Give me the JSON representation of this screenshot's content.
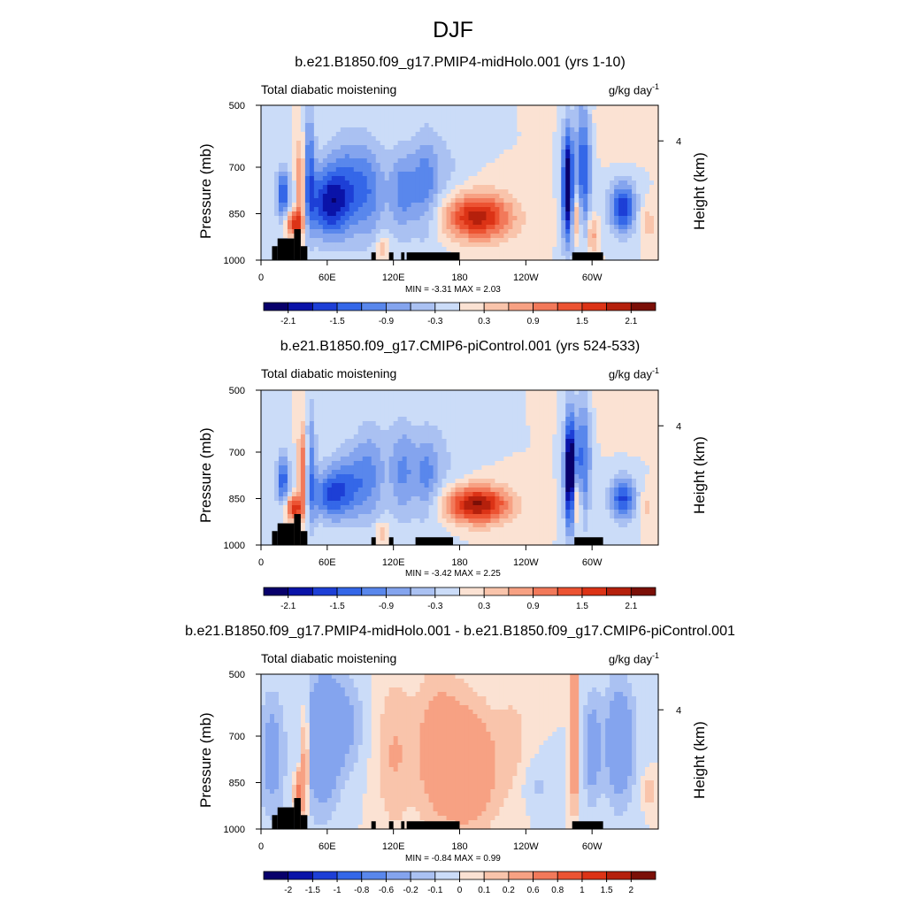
{
  "main_title": "DJF",
  "chart_data": [
    {
      "type": "heatmap",
      "title": "b.e21.B1850.f09_g17.PMIP4-midHolo.001 (yrs 1-10)",
      "left_string": "Total diabatic moistening",
      "right_string_base": "g/kg day",
      "right_string_exp": "-1",
      "ylabel": "Pressure (mb)",
      "ylabel_right": "Height (km)",
      "x_ticks": [
        "0",
        "60E",
        "120E",
        "180",
        "120W",
        "60W"
      ],
      "x_tick_values": [
        0,
        60,
        120,
        180,
        240,
        300
      ],
      "x_range": [
        0,
        360
      ],
      "y_ticks": [
        "500",
        "700",
        "850",
        "1000"
      ],
      "y_tick_values": [
        500,
        700,
        850,
        1000
      ],
      "y_range": [
        500,
        1000
      ],
      "y_right_ticks": [
        "4"
      ],
      "y_right_tick_values": [
        615
      ],
      "min_max": "MIN =  -3.31  MAX =   2.03",
      "contour_levels": [
        -2.4,
        -2.1,
        -1.8,
        -1.5,
        -1.2,
        -0.9,
        -0.6,
        -0.3,
        0,
        0.3,
        0.6,
        0.9,
        1.2,
        1.5,
        1.8,
        2.1,
        2.4
      ],
      "colorbar_labels": [
        "-2.1",
        "-1.5",
        "-0.9",
        "-0.3",
        "0.3",
        "0.9",
        "1.5",
        "2.1"
      ],
      "colorbar_label_index": [
        1,
        3,
        5,
        7,
        9,
        11,
        13,
        15
      ],
      "features": [
        {
          "lon": 20,
          "p": 790,
          "w": 6,
          "h": 90,
          "v": -1.5
        },
        {
          "lon": 30,
          "p": 880,
          "w": 8,
          "h": 40,
          "v": 1.8
        },
        {
          "lon": 36,
          "p": 760,
          "w": 4,
          "h": 140,
          "v": 1.3
        },
        {
          "lon": 44,
          "p": 700,
          "w": 5,
          "h": 200,
          "v": -1.2
        },
        {
          "lon": 60,
          "p": 820,
          "w": 18,
          "h": 110,
          "v": -1.6
        },
        {
          "lon": 78,
          "p": 760,
          "w": 20,
          "h": 160,
          "v": -1.1
        },
        {
          "lon": 100,
          "p": 780,
          "w": 15,
          "h": 160,
          "v": -0.8
        },
        {
          "lon": 128,
          "p": 780,
          "w": 12,
          "h": 140,
          "v": -1.0
        },
        {
          "lon": 148,
          "p": 760,
          "w": 12,
          "h": 160,
          "v": -0.9
        },
        {
          "lon": 165,
          "p": 750,
          "w": 22,
          "h": 200,
          "v": -0.4
        },
        {
          "lon": 110,
          "p": 960,
          "w": 6,
          "h": 40,
          "v": 0.6
        },
        {
          "lon": 195,
          "p": 860,
          "w": 32,
          "h": 75,
          "v": 2.0
        },
        {
          "lon": 278,
          "p": 760,
          "w": 5,
          "h": 180,
          "v": -2.6
        },
        {
          "lon": 292,
          "p": 700,
          "w": 7,
          "h": 220,
          "v": -1.5
        },
        {
          "lon": 286,
          "p": 860,
          "w": 4,
          "h": 80,
          "v": 1.1
        },
        {
          "lon": 300,
          "p": 920,
          "w": 5,
          "h": 60,
          "v": 0.8
        },
        {
          "lon": 328,
          "p": 830,
          "w": 12,
          "h": 80,
          "v": -1.8
        },
        {
          "lon": 350,
          "p": 880,
          "w": 8,
          "h": 60,
          "v": 0.5
        },
        {
          "lon": 330,
          "p": 560,
          "w": 30,
          "h": 90,
          "v": 0.3
        }
      ],
      "terrain": [
        {
          "lon0": 10,
          "lon1": 15,
          "p": 955
        },
        {
          "lon0": 15,
          "lon1": 30,
          "p": 930
        },
        {
          "lon0": 30,
          "lon1": 36,
          "p": 900
        },
        {
          "lon0": 36,
          "lon1": 42,
          "p": 955
        },
        {
          "lon0": 100,
          "lon1": 104,
          "p": 975
        },
        {
          "lon0": 116,
          "lon1": 120,
          "p": 975
        },
        {
          "lon0": 127,
          "lon1": 130,
          "p": 975
        },
        {
          "lon0": 132,
          "lon1": 180,
          "p": 975
        },
        {
          "lon0": 282,
          "lon1": 310,
          "p": 975
        }
      ]
    },
    {
      "type": "heatmap",
      "title": "b.e21.B1850.f09_g17.CMIP6-piControl.001 (yrs 524-533)",
      "left_string": "Total diabatic moistening",
      "right_string_base": "g/kg day",
      "right_string_exp": "-1",
      "ylabel": "Pressure (mb)",
      "ylabel_right": "Height (km)",
      "x_ticks": [
        "0",
        "60E",
        "120E",
        "180",
        "120W",
        "60W"
      ],
      "x_tick_values": [
        0,
        60,
        120,
        180,
        240,
        300
      ],
      "x_range": [
        0,
        360
      ],
      "y_ticks": [
        "500",
        "700",
        "850",
        "1000"
      ],
      "y_tick_values": [
        500,
        700,
        850,
        1000
      ],
      "y_range": [
        500,
        1000
      ],
      "y_right_ticks": [
        "4"
      ],
      "y_right_tick_values": [
        615
      ],
      "min_max": "MIN =  -3.42  MAX =   2.25",
      "contour_levels": [
        -2.4,
        -2.1,
        -1.8,
        -1.5,
        -1.2,
        -0.9,
        -0.6,
        -0.3,
        0,
        0.3,
        0.6,
        0.9,
        1.2,
        1.5,
        1.8,
        2.1,
        2.4
      ],
      "colorbar_labels": [
        "-2.1",
        "-1.5",
        "-0.9",
        "-0.3",
        "0.3",
        "0.9",
        "1.5",
        "2.1"
      ],
      "colorbar_label_index": [
        1,
        3,
        5,
        7,
        9,
        11,
        13,
        15
      ],
      "features": [
        {
          "lon": 20,
          "p": 790,
          "w": 6,
          "h": 90,
          "v": -1.4
        },
        {
          "lon": 30,
          "p": 880,
          "w": 8,
          "h": 40,
          "v": 1.8
        },
        {
          "lon": 38,
          "p": 760,
          "w": 4,
          "h": 140,
          "v": 1.4
        },
        {
          "lon": 45,
          "p": 740,
          "w": 5,
          "h": 200,
          "v": -1.0
        },
        {
          "lon": 62,
          "p": 840,
          "w": 18,
          "h": 80,
          "v": -1.2
        },
        {
          "lon": 80,
          "p": 800,
          "w": 20,
          "h": 120,
          "v": -0.9
        },
        {
          "lon": 100,
          "p": 760,
          "w": 15,
          "h": 170,
          "v": -0.7
        },
        {
          "lon": 128,
          "p": 760,
          "w": 12,
          "h": 160,
          "v": -0.9
        },
        {
          "lon": 150,
          "p": 780,
          "w": 12,
          "h": 140,
          "v": -0.8
        },
        {
          "lon": 165,
          "p": 760,
          "w": 25,
          "h": 200,
          "v": -0.3
        },
        {
          "lon": 110,
          "p": 960,
          "w": 6,
          "h": 40,
          "v": 0.6
        },
        {
          "lon": 195,
          "p": 870,
          "w": 30,
          "h": 60,
          "v": 2.2
        },
        {
          "lon": 280,
          "p": 760,
          "w": 5,
          "h": 180,
          "v": -2.8
        },
        {
          "lon": 292,
          "p": 720,
          "w": 7,
          "h": 200,
          "v": -1.3
        },
        {
          "lon": 286,
          "p": 860,
          "w": 4,
          "h": 80,
          "v": 1.1
        },
        {
          "lon": 328,
          "p": 850,
          "w": 12,
          "h": 70,
          "v": -1.6
        },
        {
          "lon": 350,
          "p": 880,
          "w": 8,
          "h": 60,
          "v": 0.4
        },
        {
          "lon": 335,
          "p": 560,
          "w": 30,
          "h": 90,
          "v": 0.3
        }
      ],
      "terrain": [
        {
          "lon0": 10,
          "lon1": 15,
          "p": 955
        },
        {
          "lon0": 15,
          "lon1": 30,
          "p": 930
        },
        {
          "lon0": 30,
          "lon1": 36,
          "p": 900
        },
        {
          "lon0": 36,
          "lon1": 42,
          "p": 955
        },
        {
          "lon0": 100,
          "lon1": 104,
          "p": 975
        },
        {
          "lon0": 116,
          "lon1": 120,
          "p": 975
        },
        {
          "lon0": 140,
          "lon1": 174,
          "p": 975
        },
        {
          "lon0": 284,
          "lon1": 310,
          "p": 975
        }
      ]
    },
    {
      "type": "heatmap",
      "title": "b.e21.B1850.f09_g17.PMIP4-midHolo.001 - b.e21.B1850.f09_g17.CMIP6-piControl.001",
      "left_string": "Total diabatic moistening",
      "right_string_base": "g/kg day",
      "right_string_exp": "-1",
      "ylabel": "Pressure (mb)",
      "ylabel_right": "Height (km)",
      "x_ticks": [
        "0",
        "60E",
        "120E",
        "180",
        "120W",
        "60W"
      ],
      "x_tick_values": [
        0,
        60,
        120,
        180,
        240,
        300
      ],
      "x_range": [
        0,
        360
      ],
      "y_ticks": [
        "500",
        "700",
        "850",
        "1000"
      ],
      "y_tick_values": [
        500,
        700,
        850,
        1000
      ],
      "y_range": [
        500,
        1000
      ],
      "y_right_ticks": [
        "4"
      ],
      "y_right_tick_values": [
        615
      ],
      "min_max": "MIN =  -0.84  MAX =   0.99",
      "contour_levels": [
        -3,
        -2,
        -1.5,
        -1,
        -0.8,
        -0.6,
        -0.2,
        -0.1,
        0,
        0.1,
        0.2,
        0.6,
        0.8,
        1,
        1.5,
        2,
        3
      ],
      "colorbar_labels": [
        "-2",
        "-1.5",
        "-1",
        "-0.8",
        "-0.6",
        "-0.2",
        "-0.1",
        "0",
        "0.1",
        "0.2",
        "0.6",
        "0.8",
        "1",
        "1.5",
        "2"
      ],
      "colorbar_label_index": [
        1,
        2,
        3,
        4,
        5,
        6,
        7,
        8,
        9,
        10,
        11,
        12,
        13,
        14,
        15
      ],
      "features": [
        {
          "lon": 10,
          "p": 760,
          "w": 12,
          "h": 200,
          "v": -0.3
        },
        {
          "lon": 35,
          "p": 880,
          "w": 4,
          "h": 60,
          "v": 0.8
        },
        {
          "lon": 40,
          "p": 760,
          "w": 3,
          "h": 150,
          "v": 0.5
        },
        {
          "lon": 55,
          "p": 720,
          "w": 15,
          "h": 220,
          "v": -0.45
        },
        {
          "lon": 75,
          "p": 660,
          "w": 18,
          "h": 160,
          "v": -0.25
        },
        {
          "lon": 120,
          "p": 760,
          "w": 16,
          "h": 250,
          "v": 0.2
        },
        {
          "lon": 160,
          "p": 740,
          "w": 22,
          "h": 240,
          "v": 0.3
        },
        {
          "lon": 190,
          "p": 800,
          "w": 25,
          "h": 200,
          "v": 0.4
        },
        {
          "lon": 230,
          "p": 720,
          "w": 15,
          "h": 200,
          "v": 0.12
        },
        {
          "lon": 250,
          "p": 860,
          "w": 15,
          "h": 80,
          "v": -0.12
        },
        {
          "lon": 284,
          "p": 680,
          "w": 3,
          "h": 220,
          "v": 0.8
        },
        {
          "lon": 300,
          "p": 740,
          "w": 8,
          "h": 180,
          "v": -0.3
        },
        {
          "lon": 325,
          "p": 720,
          "w": 14,
          "h": 200,
          "v": -0.4
        },
        {
          "lon": 352,
          "p": 880,
          "w": 6,
          "h": 50,
          "v": 0.2
        }
      ],
      "terrain": [
        {
          "lon0": 10,
          "lon1": 15,
          "p": 955
        },
        {
          "lon0": 15,
          "lon1": 30,
          "p": 930
        },
        {
          "lon0": 30,
          "lon1": 36,
          "p": 900
        },
        {
          "lon0": 36,
          "lon1": 42,
          "p": 955
        },
        {
          "lon0": 100,
          "lon1": 104,
          "p": 975
        },
        {
          "lon0": 116,
          "lon1": 120,
          "p": 975
        },
        {
          "lon0": 127,
          "lon1": 130,
          "p": 975
        },
        {
          "lon0": 132,
          "lon1": 180,
          "p": 975
        },
        {
          "lon0": 282,
          "lon1": 310,
          "p": 975
        }
      ]
    }
  ],
  "colormap": [
    "#08006b",
    "#0a13a8",
    "#1d3fd6",
    "#3467e8",
    "#5987ec",
    "#84a4ee",
    "#aac1f2",
    "#cbdcf8",
    "#fbe2d3",
    "#f9c4ab",
    "#f7a183",
    "#f2795a",
    "#ec5332",
    "#dc3316",
    "#b5200c",
    "#7b0f07"
  ],
  "terrain_color": "#000000",
  "frame_color": "#000000"
}
